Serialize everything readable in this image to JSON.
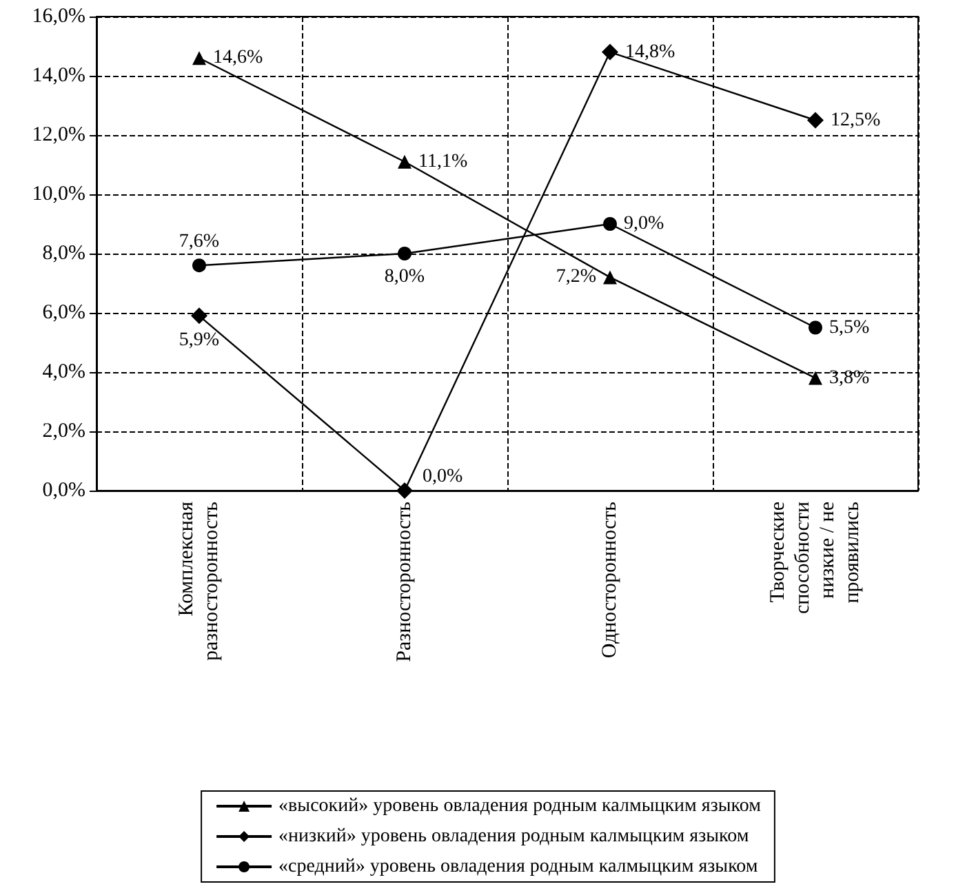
{
  "chart_data": {
    "type": "line",
    "categories": [
      "Комплексная разносторонность",
      "Разносторонность",
      "Односторонность",
      "Творческие способности низкие / не проявились"
    ],
    "series": [
      {
        "name": "«высокий» уровень овладения родным калмыцким языком",
        "color": "#000000",
        "marker": "triangle",
        "values": [
          14.6,
          11.1,
          7.2,
          3.8
        ],
        "value_labels": [
          "14,6%",
          "11,1%",
          "7,2%",
          "3,8%"
        ]
      },
      {
        "name": "«низкий» уровень овладения родным калмыцким языком",
        "color": "#000000",
        "marker": "diamond",
        "values": [
          5.9,
          0.0,
          14.8,
          12.5
        ],
        "value_labels": [
          "5,9%",
          "0,0%",
          "14,8%",
          "12,5%"
        ]
      },
      {
        "name": "«средний» уровень овладения родным калмыцким языком",
        "color": "#000000",
        "marker": "circle",
        "values": [
          7.6,
          8.0,
          9.0,
          5.5
        ],
        "value_labels": [
          "7,6%",
          "8,0%",
          "9,0%",
          "5,5%"
        ]
      }
    ],
    "ylim": [
      0,
      16
    ],
    "yticks": [
      {
        "value": 0,
        "label": "0,0%"
      },
      {
        "value": 2,
        "label": "2,0%"
      },
      {
        "value": 4,
        "label": "4,0%"
      },
      {
        "value": 6,
        "label": "6,0%"
      },
      {
        "value": 8,
        "label": "8,0%"
      },
      {
        "value": 10,
        "label": "10,0%"
      },
      {
        "value": 12,
        "label": "12,0%"
      },
      {
        "value": 14,
        "label": "14,0%"
      },
      {
        "value": 16,
        "label": "16,0%"
      }
    ],
    "grid": true,
    "legend": "bottom",
    "line_style": "solid"
  }
}
